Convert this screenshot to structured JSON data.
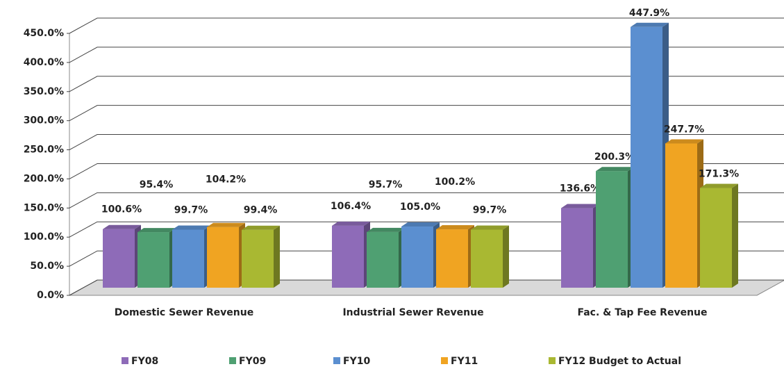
{
  "chart_data": {
    "type": "bar3d",
    "categories": [
      "Domestic Sewer Revenue",
      "Industrial Sewer Revenue",
      "Fac. & Tap Fee Revenue"
    ],
    "series": [
      {
        "name": "FY08",
        "color": "#8e6bb8",
        "values": [
          100.6,
          106.4,
          136.6
        ],
        "value_labels": [
          "100.6%",
          "106.4%",
          "136.6%"
        ]
      },
      {
        "name": "FY09",
        "color": "#4fa072",
        "values": [
          95.4,
          95.7,
          200.3
        ],
        "value_labels": [
          "95.4%",
          "95.7%",
          "200.3%"
        ]
      },
      {
        "name": "FY10",
        "color": "#5b8fd0",
        "values": [
          99.7,
          105.0,
          447.9
        ],
        "value_labels": [
          "99.7%",
          "105.0%",
          "447.9%"
        ]
      },
      {
        "name": "FY11",
        "color": "#f0a422",
        "values": [
          104.2,
          100.2,
          247.7
        ],
        "value_labels": [
          "104.2%",
          "100.2%",
          "247.7%"
        ]
      },
      {
        "name": "FY12 Budget to Actual",
        "color": "#a9b832",
        "values": [
          99.4,
          99.7,
          171.3
        ],
        "value_labels": [
          "99.4%",
          "99.7%",
          "171.3%"
        ]
      }
    ],
    "ylim": [
      0,
      450
    ],
    "yticks": [
      {
        "value": 0,
        "label": "0.0%"
      },
      {
        "value": 50,
        "label": "50.0%"
      },
      {
        "value": 100,
        "label": "100.0%"
      },
      {
        "value": 150,
        "label": "150.0%"
      },
      {
        "value": 200,
        "label": "200.0%"
      },
      {
        "value": 250,
        "label": "250.0%"
      },
      {
        "value": 300,
        "label": "300.0%"
      },
      {
        "value": 350,
        "label": "350.0%"
      },
      {
        "value": 400,
        "label": "400.0%"
      },
      {
        "value": 450,
        "label": "450.0%"
      }
    ],
    "grid": true,
    "legend": "bottom"
  }
}
